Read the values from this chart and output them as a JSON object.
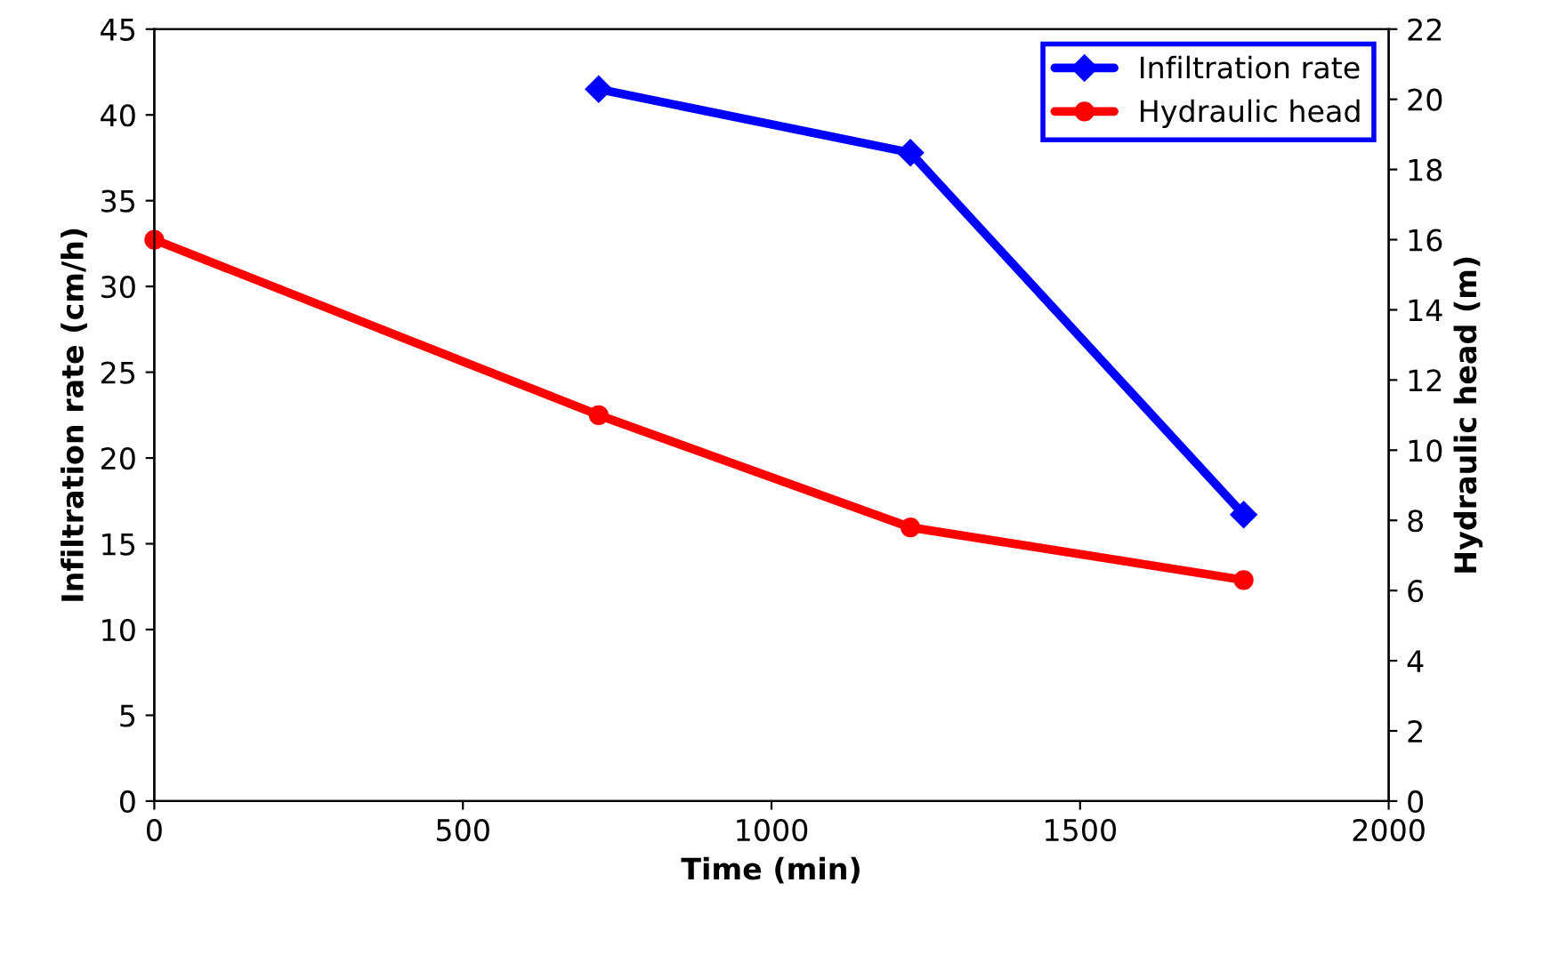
{
  "chart_data": {
    "type": "line",
    "xlabel": "Time (min)",
    "ylabel": "Infiltration rate (cm/h)",
    "y2label": "Hydraulic head (m)",
    "series": [
      {
        "name": "Infiltration rate",
        "color": "#0000ff",
        "marker": "diamond",
        "x": [
          720,
          1225,
          1765
        ],
        "values": [
          41.5,
          37.8,
          16.7
        ]
      },
      {
        "name": "Hydraulic head",
        "color": "#ff0000",
        "marker": "circle",
        "axis": "y2",
        "x": [
          0,
          720,
          1225,
          1765
        ],
        "values": [
          16,
          11,
          7.8,
          6.3
        ]
      }
    ],
    "xlim": [
      0,
      2000
    ],
    "xticks": [
      0,
      500,
      1000,
      1500,
      2000
    ],
    "ylim": [
      0,
      45
    ],
    "yticks": [
      0,
      5,
      10,
      15,
      20,
      25,
      30,
      35,
      40,
      45
    ],
    "y2lim": [
      0,
      22
    ],
    "y2ticks": [
      0,
      2,
      4,
      6,
      8,
      10,
      12,
      14,
      16,
      18,
      20,
      22
    ],
    "grid": false,
    "legend": "top right",
    "line_style": "solid"
  }
}
